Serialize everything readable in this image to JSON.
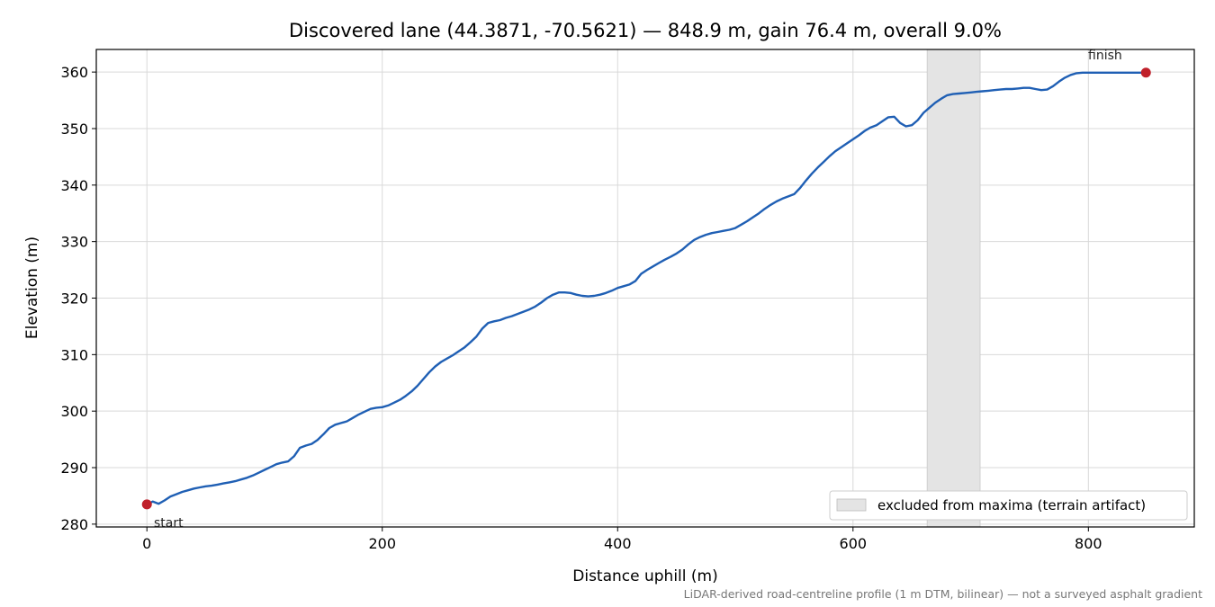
{
  "chart_data": {
    "type": "line",
    "title": "Discovered lane (44.3871, -70.5621) — 848.9 m, gain 76.4 m, overall 9.0%",
    "xlabel": "Distance uphill (m)",
    "ylabel": "Elevation (m)",
    "xlim": [
      -43,
      890
    ],
    "ylim": [
      279.5,
      364
    ],
    "xticks": [
      0,
      200,
      400,
      600,
      800
    ],
    "yticks": [
      280,
      290,
      300,
      310,
      320,
      330,
      340,
      350,
      360
    ],
    "grid": true,
    "line_color": "#1f5fb4",
    "marker_color": "#c0202a",
    "shade_color": "#e4e4e4",
    "series": [
      {
        "x": [
          0,
          5,
          10,
          15,
          20,
          25,
          30,
          35,
          40,
          45,
          50,
          55,
          60,
          65,
          70,
          75,
          80,
          85,
          90,
          95,
          100,
          105,
          110,
          115,
          120,
          125,
          130,
          135,
          140,
          145,
          150,
          155,
          160,
          165,
          170,
          175,
          180,
          185,
          190,
          195,
          200,
          205,
          210,
          215,
          220,
          225,
          230,
          235,
          240,
          245,
          250,
          255,
          260,
          265,
          270,
          275,
          280,
          285,
          290,
          295,
          300,
          305,
          310,
          315,
          320,
          325,
          330,
          335,
          340,
          345,
          350,
          355,
          360,
          365,
          370,
          375,
          380,
          385,
          390,
          395,
          400,
          405,
          410,
          415,
          420,
          425,
          430,
          435,
          440,
          445,
          450,
          455,
          460,
          465,
          470,
          475,
          480,
          485,
          490,
          495,
          500,
          505,
          510,
          515,
          520,
          525,
          530,
          535,
          540,
          545,
          550,
          555,
          560,
          565,
          570,
          575,
          580,
          585,
          590,
          595,
          600,
          605,
          610,
          615,
          620,
          625,
          630,
          635,
          640,
          645,
          650,
          655,
          660,
          665,
          670,
          675,
          680,
          685,
          690,
          695,
          700,
          705,
          710,
          715,
          720,
          725,
          730,
          735,
          740,
          745,
          750,
          755,
          760,
          765,
          770,
          775,
          780,
          785,
          790,
          795,
          800,
          805,
          810,
          815,
          820,
          825,
          830,
          835,
          840,
          845,
          848.9
        ],
        "y": [
          283.5,
          284.0,
          283.6,
          284.2,
          284.9,
          285.3,
          285.7,
          286.0,
          286.3,
          286.5,
          286.7,
          286.8,
          287.0,
          287.2,
          287.4,
          287.6,
          287.9,
          288.2,
          288.6,
          289.1,
          289.6,
          290.1,
          290.6,
          290.9,
          291.1,
          292.0,
          293.5,
          293.9,
          294.2,
          294.9,
          295.9,
          297.0,
          297.6,
          297.9,
          298.2,
          298.8,
          299.4,
          299.9,
          300.4,
          300.6,
          300.7,
          301.0,
          301.5,
          302.0,
          302.7,
          303.5,
          304.5,
          305.7,
          306.9,
          307.9,
          308.7,
          309.3,
          309.9,
          310.6,
          311.3,
          312.2,
          313.2,
          314.6,
          315.6,
          315.9,
          316.1,
          316.5,
          316.8,
          317.2,
          317.6,
          318.0,
          318.5,
          319.2,
          320.0,
          320.6,
          321.0,
          321.0,
          320.9,
          320.6,
          320.4,
          320.3,
          320.4,
          320.6,
          320.9,
          321.3,
          321.8,
          322.1,
          322.4,
          323.0,
          324.3,
          325.0,
          325.6,
          326.2,
          326.8,
          327.3,
          327.9,
          328.6,
          329.5,
          330.3,
          330.8,
          331.2,
          331.5,
          331.7,
          331.9,
          332.1,
          332.4,
          333.0,
          333.6,
          334.3,
          335.0,
          335.8,
          336.5,
          337.1,
          337.6,
          338.0,
          338.4,
          339.5,
          340.8,
          342.0,
          343.1,
          344.1,
          345.1,
          346.0,
          346.7,
          347.4,
          348.1,
          348.8,
          349.6,
          350.2,
          350.6,
          351.3,
          352.0,
          352.1,
          351.0,
          350.4,
          350.6,
          351.5,
          352.8,
          353.7,
          354.6,
          355.3,
          355.9,
          356.1,
          356.2,
          356.3,
          356.4,
          356.5,
          356.6,
          356.7,
          356.8,
          356.9,
          357.0,
          357.0,
          357.1,
          357.2,
          357.2,
          357.0,
          356.8,
          356.9,
          357.5,
          358.3,
          359.0,
          359.5,
          359.8,
          359.9,
          359.9,
          359.9,
          359.9,
          359.9,
          359.9,
          359.9,
          359.9,
          359.9,
          359.9,
          359.9,
          359.9
        ]
      }
    ],
    "excluded_band": [
      663,
      708
    ],
    "start_point": {
      "x": 0,
      "y": 283.5,
      "label": "start"
    },
    "finish_point": {
      "x": 848.9,
      "y": 359.9,
      "label": "finish"
    },
    "legend": {
      "position": "lower-right",
      "label": "excluded from maxima (terrain artifact)"
    },
    "footnote": "LiDAR-derived road-centreline profile (1 m DTM, bilinear) — not a surveyed asphalt gradient"
  }
}
